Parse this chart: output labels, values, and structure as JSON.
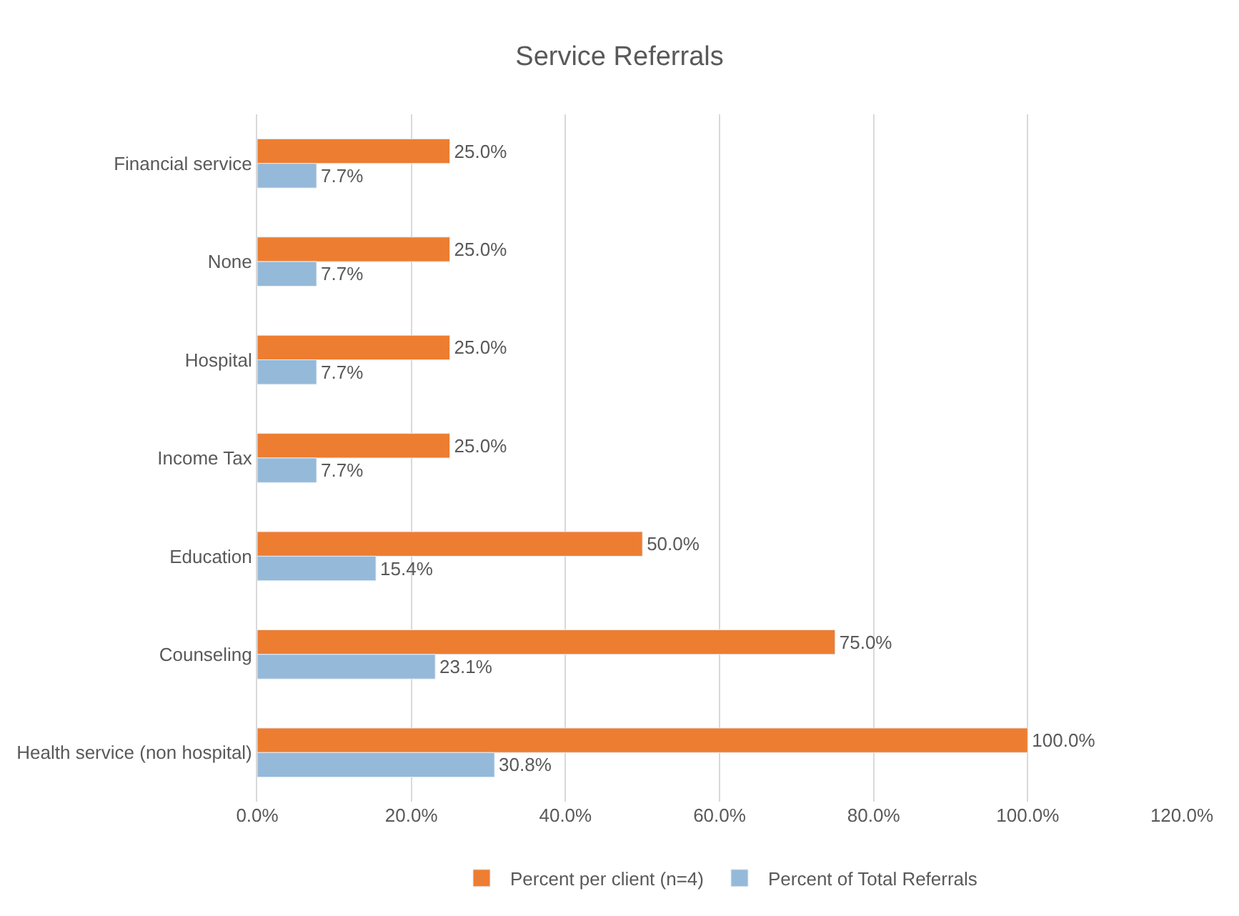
{
  "chart_data": {
    "type": "bar",
    "orientation": "horizontal",
    "title": "Service Referrals",
    "categories": [
      "Financial service",
      "None",
      "Hospital",
      "Income Tax",
      "Education",
      "Counseling",
      "Health service (non hospital)"
    ],
    "series": [
      {
        "name": "Percent per client (n=4)",
        "color": "#ed7d31",
        "values": [
          25.0,
          25.0,
          25.0,
          25.0,
          50.0,
          75.0,
          100.0
        ],
        "value_labels": [
          "25.0%",
          "25.0%",
          "25.0%",
          "25.0%",
          "50.0%",
          "75.0%",
          "100.0%"
        ]
      },
      {
        "name": "Percent of Total Referrals",
        "color": "#95b9d9",
        "values": [
          7.7,
          7.7,
          7.7,
          7.7,
          15.4,
          23.1,
          30.8
        ],
        "value_labels": [
          "7.7%",
          "7.7%",
          "7.7%",
          "7.7%",
          "15.4%",
          "23.1%",
          "30.8%"
        ]
      }
    ],
    "xlim": [
      0,
      120
    ],
    "xticks": [
      {
        "value": 0,
        "label": "0.0%"
      },
      {
        "value": 20,
        "label": "20.0%"
      },
      {
        "value": 40,
        "label": "40.0%"
      },
      {
        "value": 60,
        "label": "60.0%"
      },
      {
        "value": 80,
        "label": "80.0%"
      },
      {
        "value": 100,
        "label": "100.0%"
      },
      {
        "value": 120,
        "label": "120.0%"
      }
    ],
    "grid": "x",
    "legend": "bottom"
  }
}
